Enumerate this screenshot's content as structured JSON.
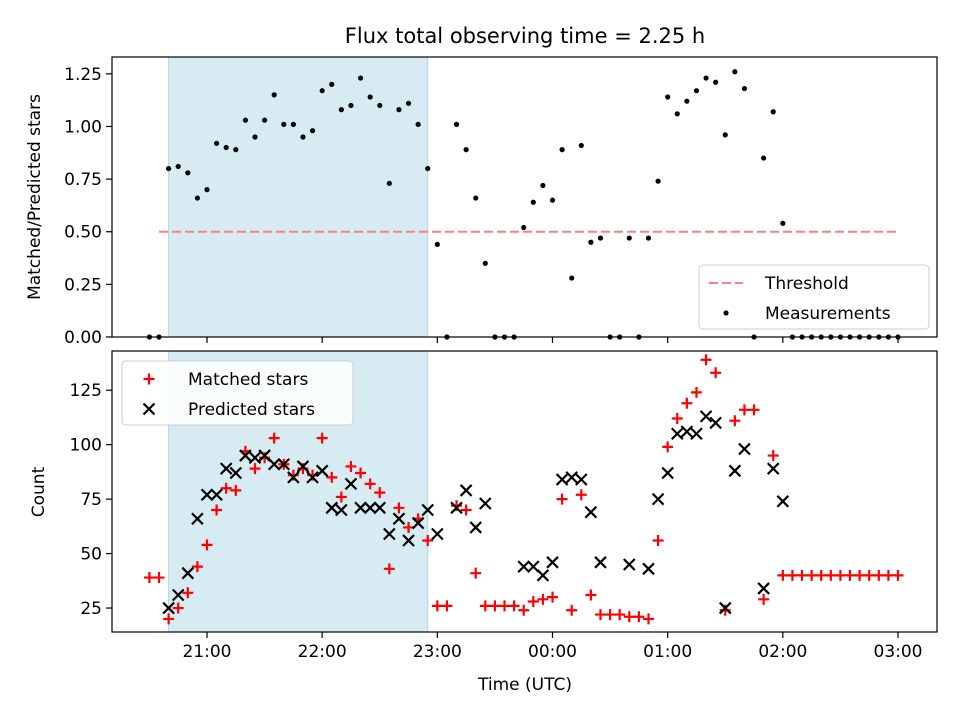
{
  "chart_data": [
    {
      "type": "scatter",
      "title": "Flux total observing time = 2.25 h",
      "xlabel": "",
      "ylabel": "Matched/Predicted stars",
      "ylim": [
        0,
        1.33
      ],
      "yticks": [
        0.0,
        0.25,
        0.5,
        0.75,
        1.0,
        1.25
      ],
      "ytick_labels": [
        "0.00",
        "0.25",
        "0.50",
        "0.75",
        "1.00",
        "1.25"
      ],
      "grid": false,
      "legend_position": "lower-right",
      "highlight_span": {
        "from": "20:40",
        "to": "22:55",
        "color": "#add8e6"
      },
      "threshold": {
        "name": "Threshold",
        "value": 0.5,
        "from": "20:35",
        "to": "03:00",
        "color": "#ff7f7f"
      },
      "series": [
        {
          "name": "Measurements",
          "color": "#000000",
          "points": [
            [
              "20:30",
              0
            ],
            [
              "20:35",
              0
            ],
            [
              "20:40",
              0.8
            ],
            [
              "20:45",
              0.81
            ],
            [
              "20:50",
              0.78
            ],
            [
              "20:55",
              0.66
            ],
            [
              "21:00",
              0.7
            ],
            [
              "21:05",
              0.92
            ],
            [
              "21:10",
              0.9
            ],
            [
              "21:15",
              0.89
            ],
            [
              "21:20",
              1.03
            ],
            [
              "21:25",
              0.95
            ],
            [
              "21:30",
              1.03
            ],
            [
              "21:35",
              1.15
            ],
            [
              "21:40",
              1.01
            ],
            [
              "21:45",
              1.01
            ],
            [
              "21:50",
              0.95
            ],
            [
              "21:55",
              0.98
            ],
            [
              "22:00",
              1.17
            ],
            [
              "22:05",
              1.2
            ],
            [
              "22:10",
              1.08
            ],
            [
              "22:15",
              1.1
            ],
            [
              "22:20",
              1.23
            ],
            [
              "22:25",
              1.14
            ],
            [
              "22:30",
              1.1
            ],
            [
              "22:35",
              0.73
            ],
            [
              "22:40",
              1.08
            ],
            [
              "22:45",
              1.11
            ],
            [
              "22:50",
              1.01
            ],
            [
              "22:55",
              0.8
            ],
            [
              "23:00",
              0.44
            ],
            [
              "23:05",
              0
            ],
            [
              "23:10",
              1.01
            ],
            [
              "23:15",
              0.89
            ],
            [
              "23:20",
              0.66
            ],
            [
              "23:25",
              0.35
            ],
            [
              "23:30",
              0
            ],
            [
              "23:35",
              0
            ],
            [
              "23:40",
              0
            ],
            [
              "23:45",
              0.52
            ],
            [
              "23:50",
              0.64
            ],
            [
              "23:55",
              0.72
            ],
            [
              "00:00",
              0.65
            ],
            [
              "00:05",
              0.89
            ],
            [
              "00:10",
              0.28
            ],
            [
              "00:15",
              0.91
            ],
            [
              "00:20",
              0.45
            ],
            [
              "00:25",
              0.47
            ],
            [
              "00:30",
              0
            ],
            [
              "00:35",
              0
            ],
            [
              "00:40",
              0.47
            ],
            [
              "00:45",
              0
            ],
            [
              "00:50",
              0.47
            ],
            [
              "00:55",
              0.74
            ],
            [
              "01:00",
              1.14
            ],
            [
              "01:05",
              1.06
            ],
            [
              "01:10",
              1.12
            ],
            [
              "01:15",
              1.17
            ],
            [
              "01:20",
              1.23
            ],
            [
              "01:25",
              1.21
            ],
            [
              "01:30",
              0.96
            ],
            [
              "01:35",
              1.26
            ],
            [
              "01:40",
              1.18
            ],
            [
              "01:45",
              0
            ],
            [
              "01:50",
              0.85
            ],
            [
              "01:55",
              1.07
            ],
            [
              "02:00",
              0.54
            ],
            [
              "02:05",
              0
            ],
            [
              "02:10",
              0
            ],
            [
              "02:15",
              0
            ],
            [
              "02:20",
              0
            ],
            [
              "02:25",
              0
            ],
            [
              "02:30",
              0
            ],
            [
              "02:35",
              0
            ],
            [
              "02:40",
              0
            ],
            [
              "02:45",
              0
            ],
            [
              "02:50",
              0
            ],
            [
              "02:55",
              0
            ],
            [
              "03:00",
              0
            ]
          ]
        }
      ]
    },
    {
      "type": "scatter",
      "title": "",
      "xlabel": "Time (UTC)",
      "ylabel": "Count",
      "ylim": [
        14,
        143
      ],
      "yticks": [
        25,
        50,
        75,
        100,
        125
      ],
      "ytick_labels": [
        "25",
        "50",
        "75",
        "100",
        "125"
      ],
      "xticks": [
        "21:00",
        "22:00",
        "23:00",
        "00:00",
        "01:00",
        "02:00",
        "03:00"
      ],
      "grid": false,
      "legend_position": "upper-left",
      "highlight_span": {
        "from": "20:40",
        "to": "22:55",
        "color": "#add8e6"
      },
      "series": [
        {
          "name": "Matched stars",
          "color": "#ff0000",
          "marker": "+",
          "points": [
            [
              "20:30",
              39
            ],
            [
              "20:35",
              39
            ],
            [
              "20:40",
              20
            ],
            [
              "20:45",
              25
            ],
            [
              "20:50",
              32
            ],
            [
              "20:55",
              44
            ],
            [
              "21:00",
              54
            ],
            [
              "21:05",
              70
            ],
            [
              "21:10",
              80
            ],
            [
              "21:15",
              79
            ],
            [
              "21:20",
              97
            ],
            [
              "21:25",
              89
            ],
            [
              "21:30",
              94
            ],
            [
              "21:35",
              103
            ],
            [
              "21:40",
              91
            ],
            [
              "21:45",
              86
            ],
            [
              "21:50",
              89
            ],
            [
              "21:55",
              86
            ],
            [
              "22:00",
              103
            ],
            [
              "22:05",
              85
            ],
            [
              "22:10",
              76
            ],
            [
              "22:15",
              90
            ],
            [
              "22:20",
              87
            ],
            [
              "22:25",
              82
            ],
            [
              "22:30",
              78
            ],
            [
              "22:35",
              43
            ],
            [
              "22:40",
              71
            ],
            [
              "22:45",
              62
            ],
            [
              "22:50",
              66
            ],
            [
              "22:55",
              56
            ],
            [
              "23:00",
              26
            ],
            [
              "23:05",
              26
            ],
            [
              "23:10",
              72
            ],
            [
              "23:15",
              70
            ],
            [
              "23:20",
              41
            ],
            [
              "23:25",
              26
            ],
            [
              "23:30",
              26
            ],
            [
              "23:35",
              26
            ],
            [
              "23:40",
              26
            ],
            [
              "23:45",
              24
            ],
            [
              "23:50",
              28
            ],
            [
              "23:55",
              29
            ],
            [
              "00:00",
              30
            ],
            [
              "00:05",
              75
            ],
            [
              "00:10",
              24
            ],
            [
              "00:15",
              77
            ],
            [
              "00:20",
              31
            ],
            [
              "00:25",
              22
            ],
            [
              "00:30",
              22
            ],
            [
              "00:35",
              22
            ],
            [
              "00:40",
              21
            ],
            [
              "00:45",
              21
            ],
            [
              "00:50",
              20
            ],
            [
              "00:55",
              56
            ],
            [
              "01:00",
              99
            ],
            [
              "01:05",
              112
            ],
            [
              "01:10",
              119
            ],
            [
              "01:15",
              124
            ],
            [
              "01:20",
              139
            ],
            [
              "01:25",
              133
            ],
            [
              "01:30",
              24
            ],
            [
              "01:35",
              111
            ],
            [
              "01:40",
              116
            ],
            [
              "01:45",
              116
            ],
            [
              "01:50",
              29
            ],
            [
              "01:55",
              95
            ],
            [
              "02:00",
              40
            ],
            [
              "02:05",
              40
            ],
            [
              "02:10",
              40
            ],
            [
              "02:15",
              40
            ],
            [
              "02:20",
              40
            ],
            [
              "02:25",
              40
            ],
            [
              "02:30",
              40
            ],
            [
              "02:35",
              40
            ],
            [
              "02:40",
              40
            ],
            [
              "02:45",
              40
            ],
            [
              "02:50",
              40
            ],
            [
              "02:55",
              40
            ],
            [
              "03:00",
              40
            ]
          ]
        },
        {
          "name": "Predicted stars",
          "color": "#000000",
          "marker": "x",
          "points": [
            [
              "20:40",
              25
            ],
            [
              "20:45",
              31
            ],
            [
              "20:50",
              41
            ],
            [
              "20:55",
              66
            ],
            [
              "21:00",
              77
            ],
            [
              "21:05",
              77
            ],
            [
              "21:10",
              89
            ],
            [
              "21:15",
              87
            ],
            [
              "21:20",
              95
            ],
            [
              "21:25",
              94
            ],
            [
              "21:30",
              95
            ],
            [
              "21:35",
              91
            ],
            [
              "21:40",
              91
            ],
            [
              "21:45",
              85
            ],
            [
              "21:50",
              90
            ],
            [
              "21:55",
              85
            ],
            [
              "22:00",
              88
            ],
            [
              "22:05",
              71
            ],
            [
              "22:10",
              70
            ],
            [
              "22:15",
              82
            ],
            [
              "22:20",
              71
            ],
            [
              "22:25",
              71
            ],
            [
              "22:30",
              71
            ],
            [
              "22:35",
              59
            ],
            [
              "22:40",
              66
            ],
            [
              "22:45",
              56
            ],
            [
              "22:50",
              64
            ],
            [
              "22:55",
              70
            ],
            [
              "23:00",
              59
            ],
            [
              "23:10",
              71
            ],
            [
              "23:15",
              79
            ],
            [
              "23:20",
              62
            ],
            [
              "23:25",
              73
            ],
            [
              "23:45",
              44
            ],
            [
              "23:50",
              44
            ],
            [
              "23:55",
              40
            ],
            [
              "00:00",
              46
            ],
            [
              "00:05",
              84
            ],
            [
              "00:10",
              85
            ],
            [
              "00:15",
              84
            ],
            [
              "00:20",
              69
            ],
            [
              "00:25",
              46
            ],
            [
              "00:40",
              45
            ],
            [
              "00:50",
              43
            ],
            [
              "00:55",
              75
            ],
            [
              "01:00",
              87
            ],
            [
              "01:05",
              105
            ],
            [
              "01:10",
              106
            ],
            [
              "01:15",
              105
            ],
            [
              "01:20",
              113
            ],
            [
              "01:25",
              110
            ],
            [
              "01:30",
              25
            ],
            [
              "01:35",
              88
            ],
            [
              "01:40",
              98
            ],
            [
              "01:50",
              34
            ],
            [
              "01:55",
              89
            ],
            [
              "02:00",
              74
            ]
          ]
        }
      ]
    }
  ]
}
